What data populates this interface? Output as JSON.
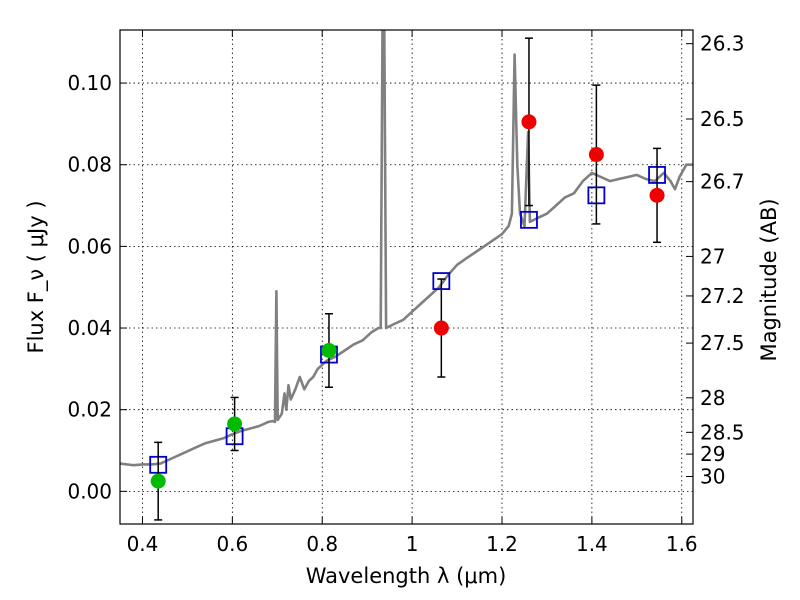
{
  "chart_data": {
    "type": "scatter",
    "xlabel": "Wavelength  λ (μm)",
    "ylabel": "Flux  F_ν  ( μJy )",
    "ylabel_right": "Magnitude (AB)",
    "xlim": [
      0.35,
      1.625
    ],
    "ylim": [
      -0.008,
      0.113
    ],
    "grid": true,
    "x_ticks": [
      {
        "v": 0.4,
        "label": "0.4"
      },
      {
        "v": 0.6,
        "label": "0.6"
      },
      {
        "v": 0.8,
        "label": "0.8"
      },
      {
        "v": 1.0,
        "label": "1"
      },
      {
        "v": 1.2,
        "label": "1.2"
      },
      {
        "v": 1.4,
        "label": "1.4"
      },
      {
        "v": 1.6,
        "label": "1.6"
      }
    ],
    "y_ticks": [
      {
        "v": 0.0,
        "label": "0.00"
      },
      {
        "v": 0.02,
        "label": "0.02"
      },
      {
        "v": 0.04,
        "label": "0.04"
      },
      {
        "v": 0.06,
        "label": "0.06"
      },
      {
        "v": 0.08,
        "label": "0.08"
      },
      {
        "v": 0.1,
        "label": "0.10"
      }
    ],
    "right_ticks": [
      {
        "mag": 26.3,
        "label": "26.3"
      },
      {
        "mag": 26.5,
        "label": "26.5"
      },
      {
        "mag": 26.7,
        "label": "26.7"
      },
      {
        "mag": 27.0,
        "label": "27"
      },
      {
        "mag": 27.2,
        "label": "27.2"
      },
      {
        "mag": 27.5,
        "label": "27.5"
      },
      {
        "mag": 28.0,
        "label": "28"
      },
      {
        "mag": 28.5,
        "label": "28.5"
      },
      {
        "mag": 29.0,
        "label": "29"
      },
      {
        "mag": 30.0,
        "label": "30"
      }
    ],
    "colors": {
      "template": "#808080",
      "model_box": "#0000cc",
      "optical": "#00bb00",
      "nir": "#ee0000",
      "errorbar": "#000000"
    },
    "template_spectrum": [
      [
        0.35,
        0.0068
      ],
      [
        0.38,
        0.0064
      ],
      [
        0.4,
        0.0066
      ],
      [
        0.42,
        0.0066
      ],
      [
        0.44,
        0.0068
      ],
      [
        0.46,
        0.0078
      ],
      [
        0.48,
        0.0088
      ],
      [
        0.5,
        0.0098
      ],
      [
        0.52,
        0.0108
      ],
      [
        0.54,
        0.0118
      ],
      [
        0.56,
        0.0124
      ],
      [
        0.58,
        0.013
      ],
      [
        0.6,
        0.014
      ],
      [
        0.62,
        0.0148
      ],
      [
        0.64,
        0.0154
      ],
      [
        0.66,
        0.016
      ],
      [
        0.68,
        0.017
      ],
      [
        0.69,
        0.0172
      ],
      [
        0.695,
        0.017
      ],
      [
        0.698,
        0.049
      ],
      [
        0.701,
        0.0175
      ],
      [
        0.71,
        0.019
      ],
      [
        0.716,
        0.024
      ],
      [
        0.72,
        0.02
      ],
      [
        0.725,
        0.026
      ],
      [
        0.73,
        0.0225
      ],
      [
        0.74,
        0.025
      ],
      [
        0.75,
        0.028
      ],
      [
        0.76,
        0.025
      ],
      [
        0.77,
        0.027
      ],
      [
        0.78,
        0.028
      ],
      [
        0.79,
        0.03
      ],
      [
        0.8,
        0.031
      ],
      [
        0.81,
        0.032
      ],
      [
        0.83,
        0.033
      ],
      [
        0.85,
        0.0345
      ],
      [
        0.87,
        0.036
      ],
      [
        0.89,
        0.037
      ],
      [
        0.91,
        0.039
      ],
      [
        0.925,
        0.04
      ],
      [
        0.93,
        0.04
      ],
      [
        0.934,
        0.113
      ],
      [
        0.938,
        0.113
      ],
      [
        0.942,
        0.04
      ],
      [
        0.96,
        0.041
      ],
      [
        0.98,
        0.042
      ],
      [
        1.0,
        0.044
      ],
      [
        1.02,
        0.046
      ],
      [
        1.04,
        0.048
      ],
      [
        1.06,
        0.05
      ],
      [
        1.08,
        0.053
      ],
      [
        1.1,
        0.0555
      ],
      [
        1.12,
        0.057
      ],
      [
        1.14,
        0.0585
      ],
      [
        1.16,
        0.06
      ],
      [
        1.18,
        0.0615
      ],
      [
        1.2,
        0.063
      ],
      [
        1.215,
        0.065
      ],
      [
        1.222,
        0.068
      ],
      [
        1.228,
        0.107
      ],
      [
        1.234,
        0.08
      ],
      [
        1.24,
        0.068
      ],
      [
        1.25,
        0.065
      ],
      [
        1.258,
        0.088
      ],
      [
        1.262,
        0.066
      ],
      [
        1.28,
        0.067
      ],
      [
        1.3,
        0.068
      ],
      [
        1.32,
        0.07
      ],
      [
        1.34,
        0.072
      ],
      [
        1.36,
        0.073
      ],
      [
        1.38,
        0.076
      ],
      [
        1.4,
        0.078
      ],
      [
        1.42,
        0.077
      ],
      [
        1.44,
        0.076
      ],
      [
        1.46,
        0.0765
      ],
      [
        1.48,
        0.077
      ],
      [
        1.5,
        0.0775
      ],
      [
        1.52,
        0.0765
      ],
      [
        1.54,
        0.076
      ],
      [
        1.56,
        0.078
      ],
      [
        1.575,
        0.076
      ],
      [
        1.585,
        0.074
      ],
      [
        1.595,
        0.077
      ],
      [
        1.61,
        0.08
      ],
      [
        1.625,
        0.08
      ]
    ],
    "series": [
      {
        "marker": "open-square",
        "color": "#0000cc",
        "x": [
          0.435,
          0.605,
          0.815,
          1.065,
          1.26,
          1.41,
          1.545
        ],
        "y": [
          0.0065,
          0.0135,
          0.0335,
          0.0515,
          0.0665,
          0.0725,
          0.0775
        ]
      },
      {
        "marker": "filled-circle",
        "color": "#00bb00",
        "x": [
          0.435,
          0.605,
          0.815
        ],
        "y": [
          0.0025,
          0.0165,
          0.0345
        ],
        "err": [
          0.0095,
          0.0065,
          0.009
        ]
      },
      {
        "marker": "filled-circle",
        "color": "#ee0000",
        "x": [
          1.065,
          1.26,
          1.41,
          1.545
        ],
        "y": [
          0.04,
          0.0905,
          0.0825,
          0.0725
        ],
        "err": [
          0.012,
          0.0205,
          0.017,
          0.0115
        ]
      }
    ]
  }
}
